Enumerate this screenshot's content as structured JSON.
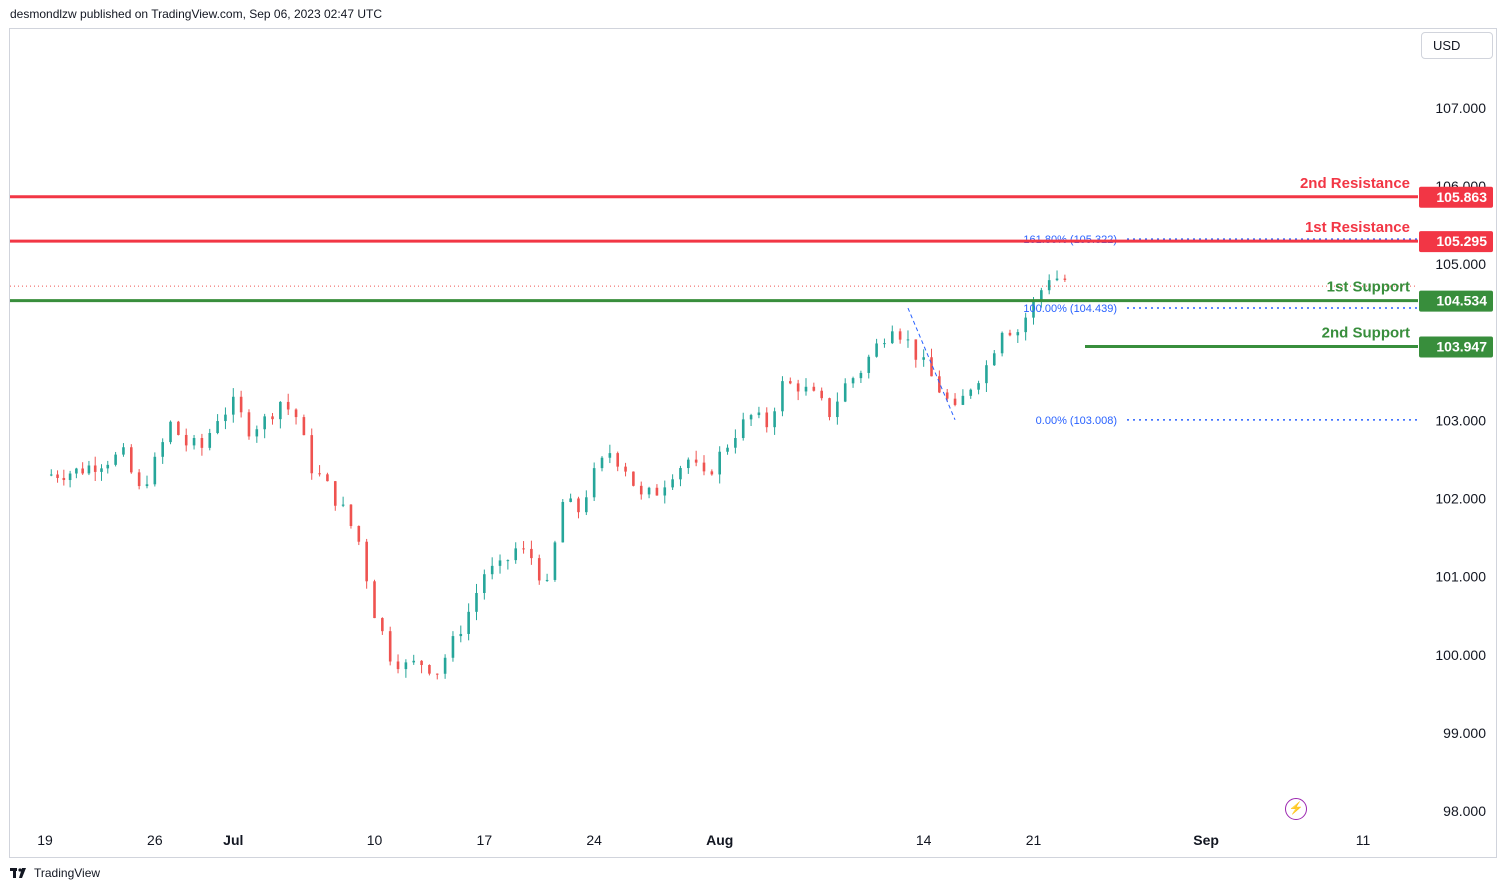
{
  "header": {
    "published": "desmondlzw published on TradingView.com, Sep 06, 2023 02:47 UTC"
  },
  "currency": "USD",
  "footer": {
    "brand": "TradingView"
  },
  "colors": {
    "up": "#26a69a",
    "down": "#ef5350",
    "resistance": "#f23645",
    "support": "#388e3c",
    "fib": "#2962ff",
    "grid_text": "#131722"
  },
  "chart_data": {
    "type": "candlestick",
    "title": "",
    "xlabel": "",
    "ylabel": "",
    "ylim": [
      97.6,
      108.2
    ],
    "y_ticks": [
      "107.000",
      "106.000",
      "105.000",
      "103.000",
      "102.000",
      "101.000",
      "100.000",
      "99.000",
      "98.000"
    ],
    "x_ticks": [
      "19",
      "26",
      "Jul",
      "10",
      "17",
      "24",
      "Aug",
      "14",
      "21",
      "Sep",
      "11"
    ],
    "x_tick_days": [
      0,
      7,
      12,
      21,
      28,
      35,
      43,
      56,
      63,
      74,
      84
    ],
    "close_path": [
      [
        0,
        102.3
      ],
      [
        2,
        102.35
      ],
      [
        4,
        102.5
      ],
      [
        5,
        102.55
      ],
      [
        6,
        102.1
      ],
      [
        7,
        102.45
      ],
      [
        8,
        102.95
      ],
      [
        9,
        102.7
      ],
      [
        10,
        102.65
      ],
      [
        11,
        103.05
      ],
      [
        12,
        103.2
      ],
      [
        13,
        102.9
      ],
      [
        14,
        103.0
      ],
      [
        15,
        103.25
      ],
      [
        16,
        103.05
      ],
      [
        17,
        102.4
      ],
      [
        18,
        102.15
      ],
      [
        19,
        101.85
      ],
      [
        20,
        101.45
      ],
      [
        21,
        100.55
      ],
      [
        22,
        100.0
      ],
      [
        23,
        99.85
      ],
      [
        24,
        99.9
      ],
      [
        25,
        99.8
      ],
      [
        26,
        100.15
      ],
      [
        27,
        100.55
      ],
      [
        28,
        101.05
      ],
      [
        29,
        101.1
      ],
      [
        30,
        101.35
      ],
      [
        31,
        101.25
      ],
      [
        32,
        100.85
      ],
      [
        33,
        101.95
      ],
      [
        34,
        101.85
      ],
      [
        35,
        102.3
      ],
      [
        36,
        102.6
      ],
      [
        37,
        102.4
      ],
      [
        38,
        102.0
      ],
      [
        39,
        102.1
      ],
      [
        40,
        102.35
      ],
      [
        41,
        102.5
      ],
      [
        42,
        102.25
      ],
      [
        43,
        102.55
      ],
      [
        44,
        102.85
      ],
      [
        45,
        103.05
      ],
      [
        46,
        102.95
      ],
      [
        47,
        103.45
      ],
      [
        48,
        103.45
      ],
      [
        49,
        103.3
      ],
      [
        50,
        103.1
      ],
      [
        51,
        103.45
      ],
      [
        52,
        103.65
      ],
      [
        53,
        103.95
      ],
      [
        54,
        104.25
      ],
      [
        55,
        104.0
      ],
      [
        56,
        103.7
      ],
      [
        57,
        103.4
      ],
      [
        58,
        103.1
      ],
      [
        59,
        103.45
      ],
      [
        60,
        103.7
      ],
      [
        61,
        104.2
      ],
      [
        62,
        104.15
      ],
      [
        63,
        104.5
      ],
      [
        64,
        104.85
      ],
      [
        65,
        104.8
      ]
    ],
    "lines": [
      {
        "label": "2nd Resistance",
        "value": 105.863,
        "value_label": "105.863",
        "kind": "resistance"
      },
      {
        "label": "1st Resistance",
        "value": 105.295,
        "value_label": "105.295",
        "kind": "resistance"
      },
      {
        "label": "1st Support",
        "value": 104.534,
        "value_label": "104.534",
        "kind": "support"
      },
      {
        "label": "2nd Support",
        "value": 103.947,
        "value_label": "103.947",
        "kind": "support"
      }
    ],
    "fibonacci": [
      {
        "label": "161.80% (105.322)",
        "value": 105.322
      },
      {
        "label": "100.00% (104.439)",
        "value": 104.439
      },
      {
        "label": "0.00% (103.008)",
        "value": 103.008
      }
    ],
    "last_price_dotted": 104.72,
    "grid": false,
    "legend": "none"
  }
}
